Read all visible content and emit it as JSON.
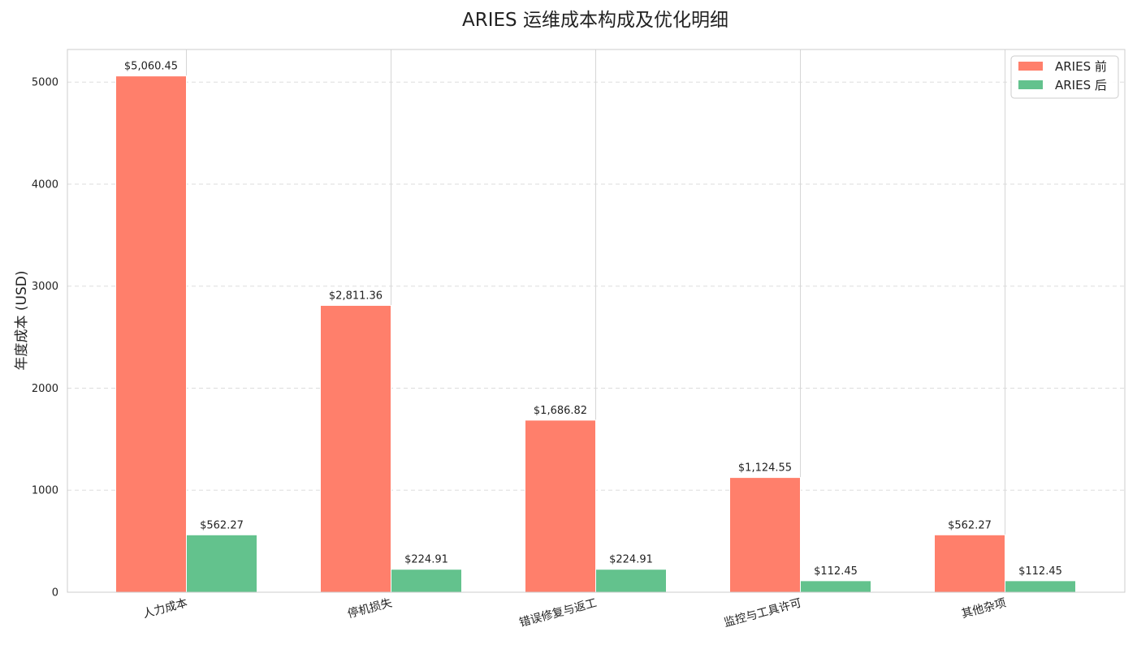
{
  "chart_data": {
    "type": "bar",
    "title": "ARIES 运维成本构成及优化明细",
    "xlabel": "",
    "ylabel": "年度成本 (USD)",
    "categories": [
      "人力成本",
      "停机损失",
      "错误修复与返工",
      "监控与工具许可",
      "其他杂项"
    ],
    "series": [
      {
        "name": "ARIES 前",
        "color": "#ff7f6b",
        "values": [
          5060.45,
          2811.36,
          1686.82,
          1124.55,
          562.27
        ],
        "labels": [
          "$5,060.45",
          "$2,811.36",
          "$1,686.82",
          "$1,124.55",
          "$562.27"
        ]
      },
      {
        "name": "ARIES 后",
        "color": "#63c28d",
        "values": [
          562.27,
          224.91,
          224.91,
          112.45,
          112.45
        ],
        "labels": [
          "$562.27",
          "$224.91",
          "$224.91",
          "$112.45",
          "$112.45"
        ]
      }
    ],
    "ylim": [
      0,
      5320
    ],
    "yticks": [
      0,
      1000,
      2000,
      3000,
      4000,
      5000
    ],
    "ytick_labels": [
      "0",
      "1000",
      "2000",
      "3000",
      "4000",
      "5000"
    ],
    "grid": true,
    "legend": "top-right"
  }
}
